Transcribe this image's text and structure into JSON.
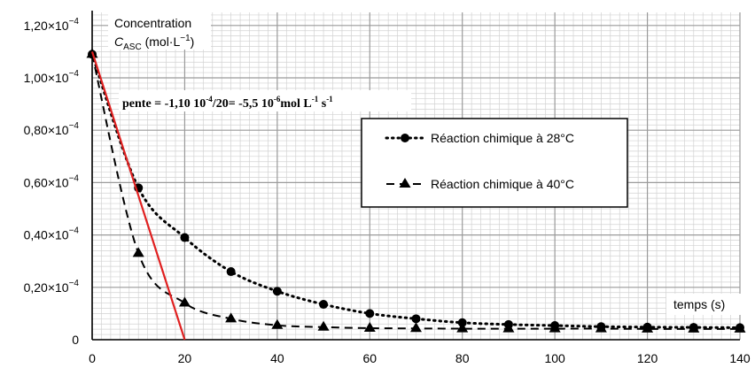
{
  "chart_data": {
    "type": "line",
    "title": "",
    "xlabel": "temps (s)",
    "ylabel_line1": "Concentration",
    "ylabel_c": "C",
    "ylabel_sub": "ASC",
    "ylabel_unit": " (mol·L",
    "ylabel_unit_sup": "−1",
    "ylabel_unit_end": ")",
    "xlim": [
      0,
      140
    ],
    "ylim": [
      0,
      0.000125
    ],
    "grid": true,
    "legend_position": "right",
    "x_ticks": [
      {
        "value": 0,
        "label": "0"
      },
      {
        "value": 20,
        "label": "20"
      },
      {
        "value": 40,
        "label": "40"
      },
      {
        "value": 60,
        "label": "60"
      },
      {
        "value": 80,
        "label": "80"
      },
      {
        "value": 100,
        "label": "100"
      },
      {
        "value": 120,
        "label": "120"
      },
      {
        "value": 140,
        "label": "140"
      }
    ],
    "y_ticks": [
      {
        "value": 0,
        "label": "0",
        "exp": ""
      },
      {
        "value": 2e-05,
        "label": "0,20×10",
        "exp": "−4"
      },
      {
        "value": 4e-05,
        "label": "0,40×10",
        "exp": "−4"
      },
      {
        "value": 6e-05,
        "label": "0,60×10",
        "exp": "−4"
      },
      {
        "value": 8e-05,
        "label": "0,80×10",
        "exp": "−4"
      },
      {
        "value": 0.0001,
        "label": "1,00×10",
        "exp": "−4"
      },
      {
        "value": 0.00012,
        "label": "1,20×10",
        "exp": "−4"
      }
    ],
    "series": [
      {
        "name": "Réaction chimique à 28°C",
        "marker": "circle",
        "line_style": "dotted",
        "x": [
          0,
          10,
          20,
          30,
          40,
          50,
          60,
          70,
          80,
          90,
          100,
          110,
          120,
          130,
          140
        ],
        "y": [
          0.000109,
          5.8e-05,
          3.9e-05,
          2.6e-05,
          1.85e-05,
          1.35e-05,
          1e-05,
          8e-06,
          6.5e-06,
          5.8e-06,
          5.4e-06,
          5e-06,
          4.8e-06,
          4.7e-06,
          4.6e-06
        ]
      },
      {
        "name": "Réaction chimique à 40°C",
        "marker": "triangle",
        "line_style": "dashed",
        "x": [
          0,
          10,
          20,
          30,
          40,
          50,
          60,
          70,
          80,
          90,
          100,
          110,
          120,
          130,
          140
        ],
        "y": [
          0.000109,
          3.3e-05,
          1.4e-05,
          8e-06,
          5.5e-06,
          4.8e-06,
          4.4e-06,
          4.3e-06,
          4.2e-06,
          4.2e-06,
          4.2e-06,
          4.2e-06,
          4.1e-06,
          4.1e-06,
          4.1e-06
        ]
      }
    ],
    "tangent": {
      "color": "#e02020",
      "x": [
        0,
        20
      ],
      "y": [
        0.00011,
        0
      ]
    },
    "annotation": {
      "part1": "pente = -1,10 10",
      "sup1": "-4",
      "part2": "/20= -5,5 10",
      "sup2": "-6",
      "part3": "mol L",
      "sup3": "-1",
      "part4": " s",
      "sup4": "-1"
    }
  }
}
